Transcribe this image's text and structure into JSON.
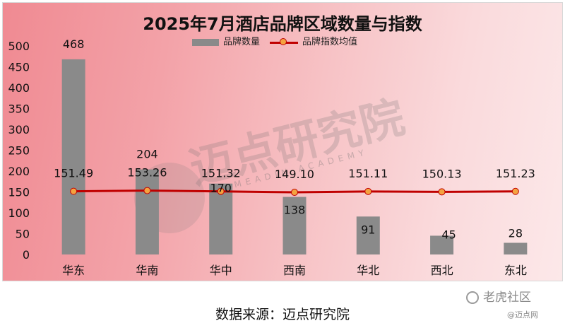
{
  "chart_data": {
    "type": "bar",
    "title": "2025年7月酒店品牌区域数量与指数",
    "categories": [
      "华东",
      "华南",
      "华中",
      "西南",
      "华北",
      "西北",
      "东北"
    ],
    "series": [
      {
        "name": "品牌数量",
        "type": "bar",
        "values": [
          468,
          204,
          170,
          138,
          91,
          45,
          28
        ],
        "color": "#8a8a8a"
      },
      {
        "name": "品牌指数均值",
        "type": "line",
        "values": [
          151.49,
          153.26,
          151.32,
          149.1,
          151.11,
          150.13,
          151.23
        ],
        "color": "#c00000",
        "marker_color": "#f4a340"
      }
    ],
    "bar_labels": [
      "468",
      "204",
      "170",
      "138",
      "91",
      "45",
      "28"
    ],
    "line_labels": [
      "151.49",
      "153.26",
      "151.32",
      "149.10",
      "151.11",
      "150.13",
      "151.23"
    ],
    "yticks": [
      "0",
      "50",
      "100",
      "150",
      "200",
      "250",
      "300",
      "350",
      "400",
      "450",
      "500"
    ],
    "ylim": [
      0,
      500
    ],
    "xlabel": "",
    "ylabel": "",
    "legend_position": "top",
    "grid": false
  },
  "source_text": "数据来源：迈点研究院",
  "watermark": {
    "center_cn": "迈点研究院",
    "center_en": "MEADIN ACADEMY",
    "brand_text": "老虎社区",
    "site_text": "@迈点网"
  }
}
